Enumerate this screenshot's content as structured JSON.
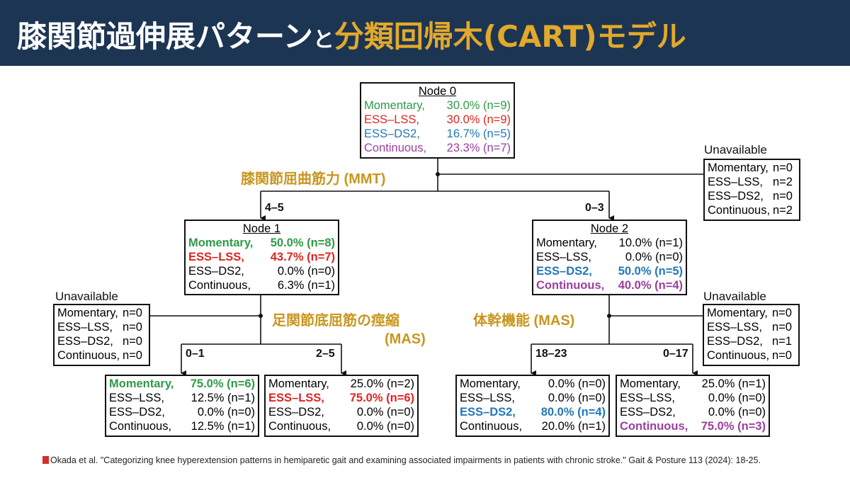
{
  "title": {
    "part1": "膝関節過伸展パターン",
    "connector": "と",
    "part2": "分類回帰木(CART)モデル"
  },
  "colors": {
    "header_bg": "#1c3553",
    "accent": "#e3a92b",
    "momentary": "#2e9a47",
    "ess_lss": "#e1231f",
    "ess_ds2": "#2377b8",
    "continuous": "#9b3f9e"
  },
  "criteria": {
    "root": "膝関節屈曲筋力 (MMT)",
    "node1_line1": "足関節底屈筋の痙縮",
    "node1_line2": "(MAS)",
    "node2": "体幹機能 (MAS)"
  },
  "branches": {
    "root_left": "4–5",
    "root_right": "0–3",
    "n1_left": "0–1",
    "n1_right": "2–5",
    "n2_left": "18–23",
    "n2_right": "0–17"
  },
  "unavailable_label": "Unavailable",
  "nodes": {
    "node0": {
      "title": "Node 0",
      "rows": [
        {
          "name": "Momentary,",
          "value": "30.0% (n=9)"
        },
        {
          "name": "ESS–LSS,",
          "value": "30.0% (n=9)"
        },
        {
          "name": "ESS–DS2,",
          "value": "16.7% (n=5)"
        },
        {
          "name": "Continuous,",
          "value": "23.3% (n=7)"
        }
      ]
    },
    "node1": {
      "title": "Node 1",
      "rows": [
        {
          "name": "Momentary,",
          "value": "50.0% (n=8)"
        },
        {
          "name": "ESS–LSS,",
          "value": "43.7% (n=7)"
        },
        {
          "name": "ESS–DS2,",
          "value": "0.0% (n=0)"
        },
        {
          "name": "Continuous,",
          "value": "6.3% (n=1)"
        }
      ]
    },
    "node2": {
      "title": "Node 2",
      "rows": [
        {
          "name": "Momentary,",
          "value": "10.0% (n=1)"
        },
        {
          "name": "ESS–LSS,",
          "value": "0.0% (n=0)"
        },
        {
          "name": "ESS–DS2,",
          "value": "50.0% (n=5)"
        },
        {
          "name": "Continuous,",
          "value": "40.0% (n=4)"
        }
      ]
    },
    "unavail_root": {
      "rows": [
        {
          "name": "Momentary,",
          "value": "n=0"
        },
        {
          "name": "ESS–LSS,",
          "value": "n=2"
        },
        {
          "name": "ESS–DS2,",
          "value": "n=0"
        },
        {
          "name": "Continuous,",
          "value": "n=2"
        }
      ]
    },
    "unavail_n1": {
      "rows": [
        {
          "name": "Momentary,",
          "value": "n=0"
        },
        {
          "name": "ESS–LSS,",
          "value": "n=0"
        },
        {
          "name": "ESS–DS2,",
          "value": "n=0"
        },
        {
          "name": "Continuous,",
          "value": "n=0"
        }
      ]
    },
    "unavail_n2": {
      "rows": [
        {
          "name": "Momentary,",
          "value": "n=0"
        },
        {
          "name": "ESS–LSS,",
          "value": "n=0"
        },
        {
          "name": "ESS–DS2,",
          "value": "n=1"
        },
        {
          "name": "Continuous,",
          "value": "n=0"
        }
      ]
    },
    "leaf1": {
      "rows": [
        {
          "name": "Momentary,",
          "value": "75.0% (n=6)"
        },
        {
          "name": "ESS–LSS,",
          "value": "12.5% (n=1)"
        },
        {
          "name": "ESS–DS2,",
          "value": "0.0% (n=0)"
        },
        {
          "name": "Continuous,",
          "value": "12.5% (n=1)"
        }
      ]
    },
    "leaf2": {
      "rows": [
        {
          "name": "Momentary,",
          "value": "25.0% (n=2)"
        },
        {
          "name": "ESS–LSS,",
          "value": "75.0% (n=6)"
        },
        {
          "name": "ESS–DS2,",
          "value": "0.0% (n=0)"
        },
        {
          "name": "Continuous,",
          "value": "0.0% (n=0)"
        }
      ]
    },
    "leaf3": {
      "rows": [
        {
          "name": "Momentary,",
          "value": "0.0% (n=0)"
        },
        {
          "name": "ESS–LSS,",
          "value": "0.0% (n=0)"
        },
        {
          "name": "ESS–DS2,",
          "value": "80.0% (n=4)"
        },
        {
          "name": "Continuous,",
          "value": "20.0% (n=1)"
        }
      ]
    },
    "leaf4": {
      "rows": [
        {
          "name": "Momentary,",
          "value": "25.0% (n=1)"
        },
        {
          "name": "ESS–LSS,",
          "value": "0.0% (n=0)"
        },
        {
          "name": "ESS–DS2,",
          "value": "0.0% (n=0)"
        },
        {
          "name": "Continuous,",
          "value": "75.0% (n=3)"
        }
      ]
    }
  },
  "citation": "Okada et al. \"Categorizing knee hyperextension patterns in hemiparetic gait and examining associated impairments in patients with chronic stroke.\" Gait & Posture 113 (2024): 18-25."
}
